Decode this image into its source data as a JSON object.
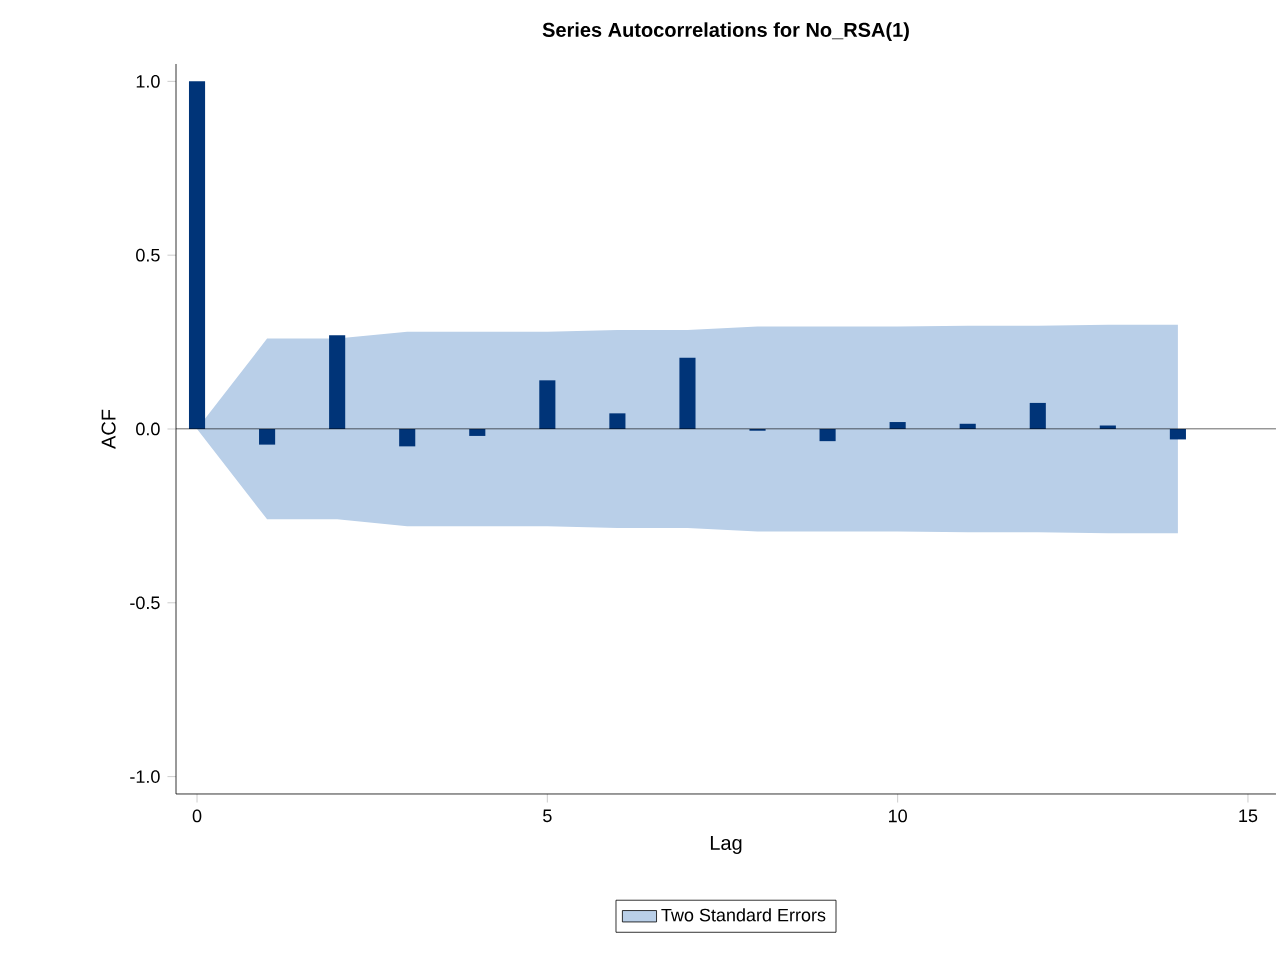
{
  "chart_data": {
    "type": "bar",
    "title": "Series Autocorrelations for No_RSA(1)",
    "xlabel": "Lag",
    "ylabel": "ACF",
    "x": [
      0,
      1,
      2,
      3,
      4,
      5,
      6,
      7,
      8,
      9,
      10,
      11,
      12,
      13,
      14
    ],
    "series": [
      {
        "type": "bar",
        "color": "#003478",
        "values": [
          1.0,
          -0.045,
          0.27,
          -0.05,
          -0.02,
          0.14,
          0.045,
          0.205,
          -0.005,
          -0.035,
          0.02,
          0.015,
          0.075,
          0.01,
          -0.03
        ]
      },
      {
        "type": "area",
        "name": "Two Standard Errors",
        "color": "#b9cfe8",
        "values": [
          null,
          null,
          null,
          null,
          null,
          null,
          null,
          null,
          null,
          null,
          null,
          null,
          null,
          null,
          null
        ],
        "lower": [
          0,
          -0.26,
          -0.26,
          -0.28,
          -0.28,
          -0.28,
          -0.285,
          -0.285,
          -0.295,
          -0.295,
          -0.295,
          -0.297,
          -0.297,
          -0.3,
          -0.3
        ],
        "upper": [
          0,
          0.26,
          0.26,
          0.28,
          0.28,
          0.28,
          0.285,
          0.285,
          0.295,
          0.295,
          0.295,
          0.297,
          0.297,
          0.3,
          0.3
        ]
      }
    ],
    "xlim": [
      -0.3,
      15.4
    ],
    "ylim": [
      -1.05,
      1.05
    ],
    "xticks": [
      0,
      5,
      10,
      15
    ],
    "yticks": [
      {
        "value": -1.0,
        "label": "-1.0"
      },
      {
        "value": -0.5,
        "label": "-0.5"
      },
      {
        "value": 0.0,
        "label": "0.0"
      },
      {
        "value": 0.5,
        "label": "0.5"
      },
      {
        "value": 1.0,
        "label": "1.0"
      }
    ],
    "ref_lines": [
      {
        "axis": "y",
        "value": 0,
        "color": "#000000"
      }
    ],
    "legend": "bottom"
  }
}
